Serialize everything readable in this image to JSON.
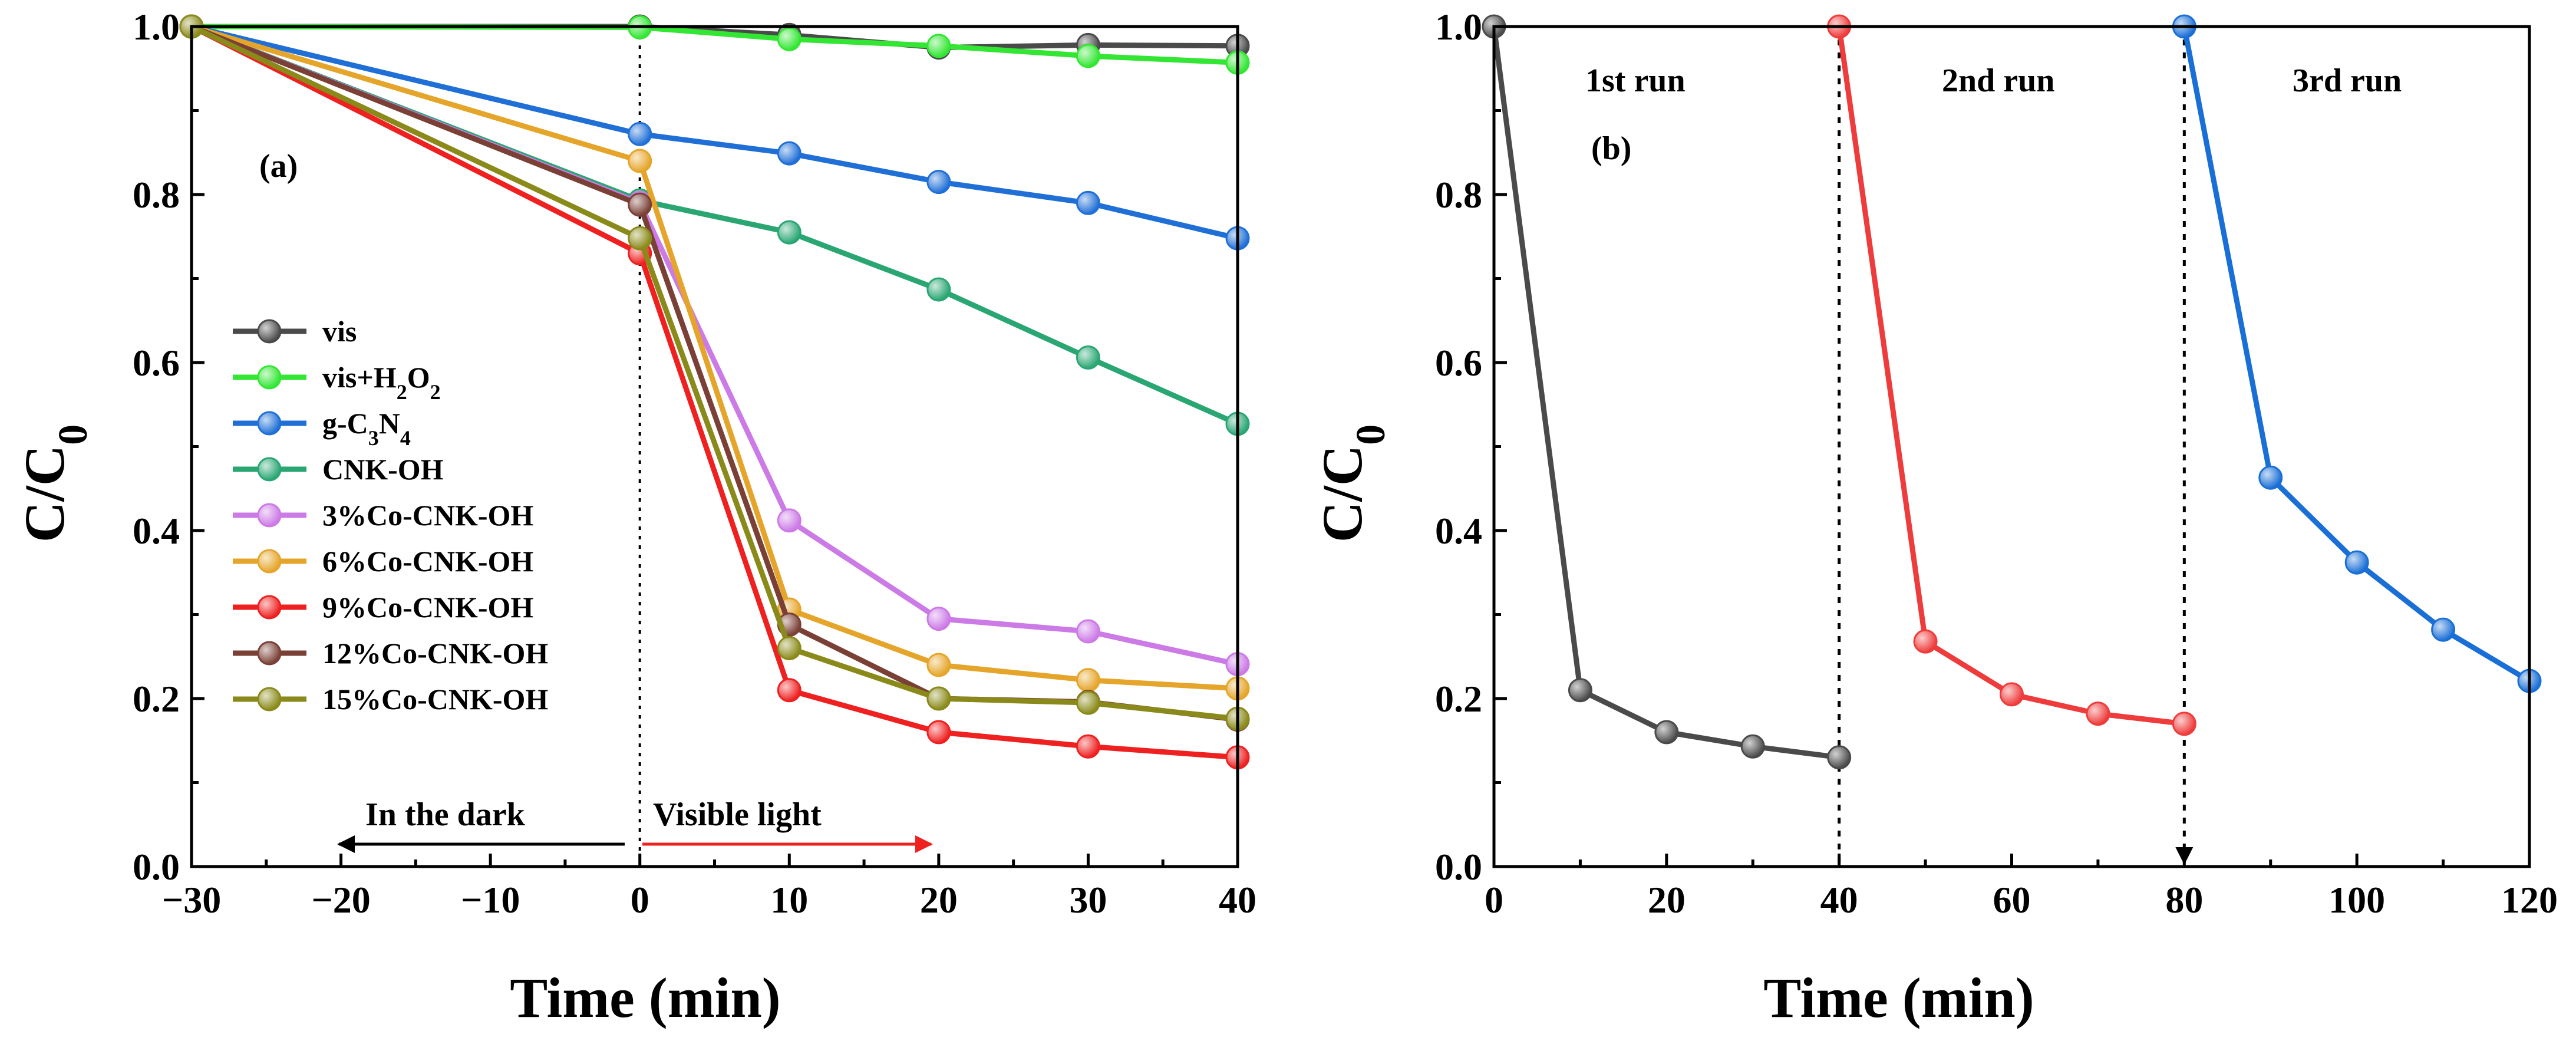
{
  "chart_data": [
    {
      "type": "line",
      "panel_label": "(a)",
      "xlabel": "Time (min)",
      "ylabel": "C/C0",
      "xlim": [
        -30,
        40
      ],
      "ylim": [
        0.0,
        1.0
      ],
      "x_ticks": [
        -30,
        -20,
        -10,
        0,
        10,
        20,
        30,
        40
      ],
      "x_tick_labels": [
        "−30",
        "−20",
        "−10",
        "0",
        "10",
        "20",
        "30",
        "40"
      ],
      "y_ticks": [
        0.0,
        0.2,
        0.4,
        0.6,
        0.8,
        1.0
      ],
      "y_tick_labels": [
        "0.0",
        "0.2",
        "0.4",
        "0.6",
        "0.8",
        "1.0"
      ],
      "x": [
        -30,
        0,
        10,
        20,
        30,
        40
      ],
      "legend_position": "left",
      "annotations": {
        "dark_label": "In the dark",
        "light_label": "Visible light"
      },
      "series": [
        {
          "name": "vis",
          "color": "#4a4a4a",
          "values": [
            1.0,
            1.0,
            0.99,
            0.975,
            0.978,
            0.977
          ]
        },
        {
          "name": "vis+H2O2",
          "color": "#33e633",
          "values": [
            1.0,
            0.999,
            0.985,
            0.977,
            0.965,
            0.957
          ]
        },
        {
          "name": "g-C3N4",
          "color": "#1f6fd6",
          "values": [
            1.0,
            0.872,
            0.849,
            0.815,
            0.79,
            0.748
          ]
        },
        {
          "name": "CNK-OH",
          "color": "#2aa673",
          "values": [
            1.0,
            0.793,
            0.755,
            0.687,
            0.606,
            0.527
          ]
        },
        {
          "name": "3%Co-CNK-OH",
          "color": "#cc7ae6",
          "values": [
            1.0,
            0.79,
            0.412,
            0.295,
            0.28,
            0.241
          ]
        },
        {
          "name": "6%Co-CNK-OH",
          "color": "#e5a52a",
          "values": [
            1.0,
            0.84,
            0.306,
            0.24,
            0.222,
            0.212
          ]
        },
        {
          "name": "9%Co-CNK-OH",
          "color": "#ee2020",
          "values": [
            1.0,
            0.73,
            0.21,
            0.16,
            0.143,
            0.13
          ]
        },
        {
          "name": "12%Co-CNK-OH",
          "color": "#7a4036",
          "values": [
            1.0,
            0.788,
            0.288,
            0.2,
            0.196,
            0.175
          ]
        },
        {
          "name": "15%Co-CNK-OH",
          "color": "#8a8a1a",
          "values": [
            1.0,
            0.748,
            0.26,
            0.2,
            0.195,
            0.176
          ]
        }
      ]
    },
    {
      "type": "line",
      "panel_label": "(b)",
      "xlabel": "Time (min)",
      "ylabel": "C/C0",
      "xlim": [
        0,
        120
      ],
      "ylim": [
        0.0,
        1.0
      ],
      "x_ticks": [
        0,
        20,
        40,
        60,
        80,
        100,
        120
      ],
      "x_tick_labels": [
        "0",
        "20",
        "40",
        "60",
        "80",
        "100",
        "120"
      ],
      "y_ticks": [
        0.0,
        0.2,
        0.4,
        0.6,
        0.8,
        1.0
      ],
      "y_tick_labels": [
        "0.0",
        "0.2",
        "0.4",
        "0.6",
        "0.8",
        "1.0"
      ],
      "series": [
        {
          "name": "1st run",
          "color": "#4a4a4a",
          "x": [
            0,
            10,
            20,
            30,
            40
          ],
          "values": [
            1.0,
            0.21,
            0.16,
            0.143,
            0.13
          ]
        },
        {
          "name": "2nd run",
          "color": "#ee3b3b",
          "x": [
            40,
            50,
            60,
            70,
            80
          ],
          "values": [
            1.0,
            0.268,
            0.205,
            0.182,
            0.17
          ]
        },
        {
          "name": "3rd run",
          "color": "#1a6fd6",
          "x": [
            80,
            90,
            100,
            110,
            120
          ],
          "values": [
            1.0,
            0.463,
            0.362,
            0.282,
            0.221
          ]
        }
      ],
      "annotations": {
        "run_labels": [
          "1st run",
          "2nd run",
          "3rd run"
        ],
        "separator_x": [
          40,
          80
        ]
      }
    }
  ]
}
